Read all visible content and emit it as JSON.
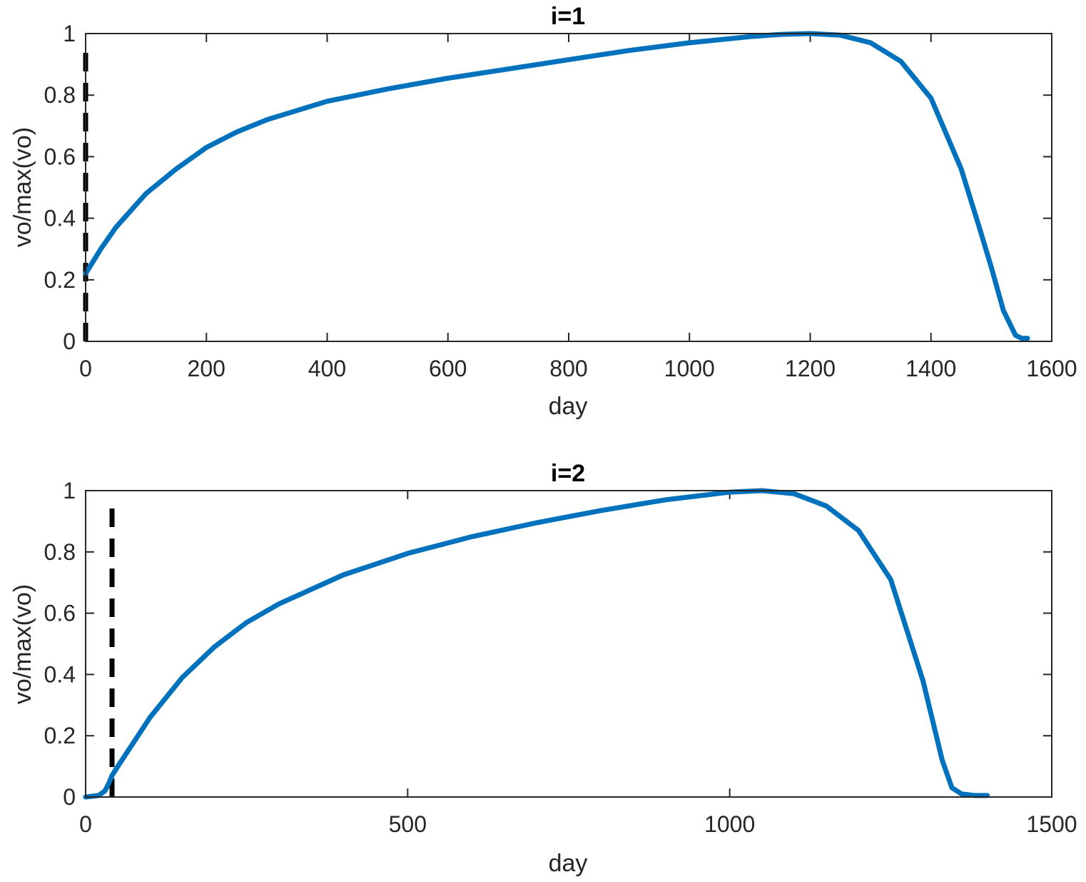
{
  "chart_data": [
    {
      "type": "line",
      "title": "i=1",
      "xlabel": "day",
      "ylabel": "vo/max(vo)",
      "xlim": [
        0,
        1600
      ],
      "ylim": [
        0,
        1
      ],
      "xticks": [
        0,
        200,
        400,
        600,
        800,
        1000,
        1200,
        1400,
        1600
      ],
      "yticks": [
        0,
        0.2,
        0.4,
        0.6,
        0.8,
        1
      ],
      "xtick_labels": [
        "0",
        "200",
        "400",
        "600",
        "800",
        "1000",
        "1200",
        "1400",
        "1600"
      ],
      "ytick_labels": [
        "0",
        "0.2",
        "0.4",
        "0.6",
        "0.8",
        "1"
      ],
      "grid": false,
      "series_color": "#0072BD",
      "marker_color": "#000000",
      "vertical_marker": {
        "x": 0,
        "y_range": [
          0,
          0.97
        ],
        "style": "dashed"
      },
      "series": [
        {
          "x": [
            0,
            25,
            50,
            100,
            150,
            200,
            250,
            300,
            400,
            500,
            600,
            700,
            800,
            900,
            1000,
            1100,
            1150,
            1200,
            1250,
            1300,
            1350,
            1400,
            1450,
            1480,
            1500,
            1520,
            1540,
            1550,
            1560
          ],
          "y": [
            0.22,
            0.3,
            0.37,
            0.48,
            0.56,
            0.63,
            0.68,
            0.72,
            0.78,
            0.82,
            0.855,
            0.885,
            0.915,
            0.945,
            0.97,
            0.99,
            0.997,
            1.0,
            0.995,
            0.97,
            0.91,
            0.79,
            0.56,
            0.37,
            0.24,
            0.1,
            0.02,
            0.01,
            0.01
          ]
        }
      ]
    },
    {
      "type": "line",
      "title": "i=2",
      "xlabel": "day",
      "ylabel": "vo/max(vo)",
      "xlim": [
        0,
        1500
      ],
      "ylim": [
        0,
        1
      ],
      "xticks": [
        0,
        500,
        1000,
        1500
      ],
      "yticks": [
        0,
        0.2,
        0.4,
        0.6,
        0.8,
        1
      ],
      "xtick_labels": [
        "0",
        "500",
        "1000",
        "1500"
      ],
      "ytick_labels": [
        "0",
        "0.2",
        "0.4",
        "0.6",
        "0.8",
        "1"
      ],
      "grid": false,
      "series_color": "#0072BD",
      "marker_color": "#000000",
      "vertical_marker": {
        "x": 41,
        "y_range": [
          0,
          0.97
        ],
        "style": "dashed"
      },
      "series": [
        {
          "x": [
            0,
            20,
            30,
            35,
            41,
            50,
            75,
            100,
            150,
            200,
            250,
            300,
            400,
            500,
            600,
            700,
            800,
            900,
            1000,
            1050,
            1100,
            1150,
            1200,
            1250,
            1300,
            1330,
            1345,
            1360,
            1380,
            1400
          ],
          "y": [
            0.0,
            0.005,
            0.02,
            0.04,
            0.07,
            0.1,
            0.18,
            0.26,
            0.39,
            0.49,
            0.57,
            0.63,
            0.725,
            0.795,
            0.85,
            0.895,
            0.935,
            0.97,
            0.995,
            1.0,
            0.99,
            0.95,
            0.87,
            0.71,
            0.38,
            0.12,
            0.03,
            0.01,
            0.005,
            0.005
          ]
        }
      ]
    }
  ]
}
